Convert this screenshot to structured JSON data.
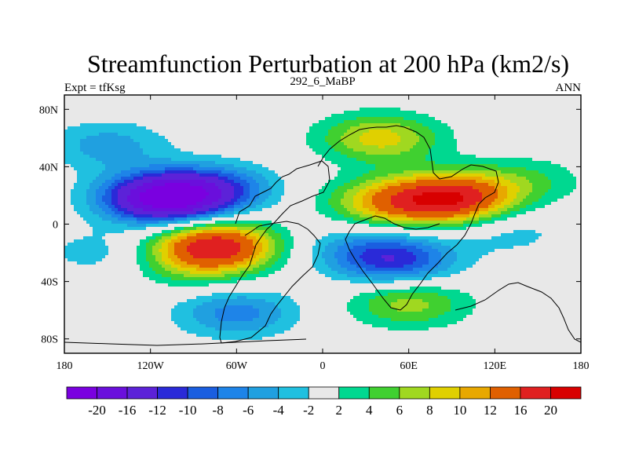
{
  "chart_data": {
    "type": "heatmap",
    "title": "Streamfunction Perturbation at 200 hPa (km2/s)",
    "left_label": "Expt = tfKsg",
    "center_label": "292_6_MaBP",
    "right_label": "ANN",
    "x_axis": {
      "range": [
        -180,
        180
      ],
      "ticks": [
        {
          "value": -180,
          "label": "180"
        },
        {
          "value": -120,
          "label": "120W"
        },
        {
          "value": -60,
          "label": "60W"
        },
        {
          "value": 0,
          "label": "0"
        },
        {
          "value": 60,
          "label": "60E"
        },
        {
          "value": 120,
          "label": "120E"
        },
        {
          "value": 180,
          "label": "180"
        }
      ]
    },
    "y_axis": {
      "range": [
        -90,
        90
      ],
      "ticks": [
        {
          "value": 80,
          "label": "80N"
        },
        {
          "value": 40,
          "label": "40N"
        },
        {
          "value": 0,
          "label": "0"
        },
        {
          "value": -40,
          "label": "40S"
        },
        {
          "value": -80,
          "label": "80S"
        }
      ]
    },
    "colorbar": {
      "colors": [
        "#7a00e0",
        "#6a0fdc",
        "#5c22d8",
        "#2a2ad8",
        "#1a5ee0",
        "#1e84e8",
        "#20a0e0",
        "#20c0e0",
        "#e8e8e8",
        "#00d890",
        "#40d030",
        "#a0d820",
        "#e0d000",
        "#e8a800",
        "#e06000",
        "#e02020",
        "#d80000"
      ],
      "labels": [
        "-20",
        "-16",
        "-12",
        "-10",
        "-8",
        "-6",
        "-4",
        "-2",
        "2",
        "4",
        "6",
        "8",
        "10",
        "12",
        "16",
        "20"
      ]
    },
    "features": [
      {
        "type": "low",
        "lon": -110,
        "lat": 18,
        "value": -22
      },
      {
        "type": "low",
        "lon": -75,
        "lat": 25,
        "value": -8
      },
      {
        "type": "high",
        "lon": -75,
        "lat": -15,
        "value": 18
      },
      {
        "type": "high",
        "lon": -90,
        "lat": -30,
        "value": 4
      },
      {
        "type": "high",
        "lon": 90,
        "lat": 18,
        "value": 18
      },
      {
        "type": "high",
        "lon": 45,
        "lat": 15,
        "value": 10
      },
      {
        "type": "high",
        "lon": 140,
        "lat": 30,
        "value": 4
      },
      {
        "type": "high",
        "lon": 40,
        "lat": 60,
        "value": 9
      },
      {
        "type": "low",
        "lon": 50,
        "lat": -25,
        "value": -11
      },
      {
        "type": "low",
        "lon": 130,
        "lat": -5,
        "value": -3
      },
      {
        "type": "low",
        "lon": -150,
        "lat": 55,
        "value": -5
      },
      {
        "type": "low",
        "lon": -60,
        "lat": -62,
        "value": -7
      },
      {
        "type": "low",
        "lon": -155,
        "lat": -20,
        "value": -3
      },
      {
        "type": "high",
        "lon": 60,
        "lat": -55,
        "value": 7
      },
      {
        "type": "low",
        "lon": 20,
        "lat": -15,
        "value": -3
      }
    ]
  }
}
